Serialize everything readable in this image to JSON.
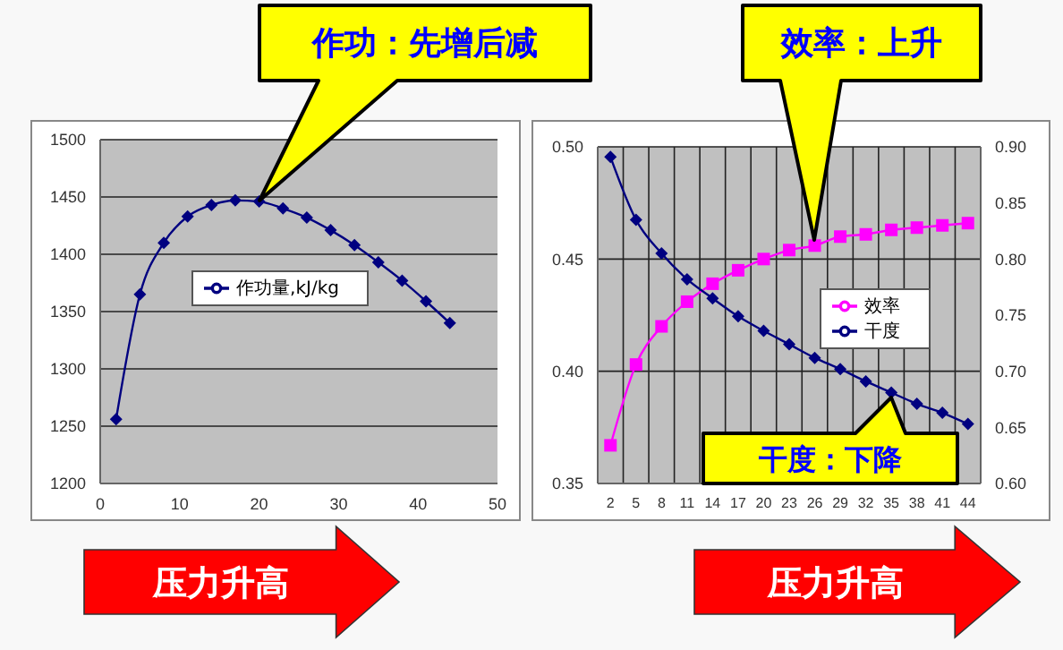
{
  "chart_data": [
    {
      "type": "line",
      "x": [
        2,
        5,
        8,
        11,
        14,
        17,
        20,
        23,
        26,
        29,
        32,
        35,
        38,
        41,
        44
      ],
      "series": [
        {
          "name": "作功量,kJ/kg",
          "color": "#000080",
          "marker": "diamond",
          "values": [
            1256,
            1365,
            1410,
            1433,
            1443,
            1447,
            1446,
            1440,
            1432,
            1421,
            1408,
            1393,
            1377,
            1359,
            1340
          ]
        }
      ],
      "xlim": [
        0,
        50
      ],
      "xticks": [
        0,
        10,
        20,
        30,
        40,
        50
      ],
      "ylim": [
        1200,
        1500
      ],
      "yticks": [
        1200,
        1250,
        1300,
        1350,
        1400,
        1450,
        1500
      ],
      "grid": "y",
      "legend": "center",
      "annotations": [
        "作功：先增后减",
        "压力升高"
      ]
    },
    {
      "type": "line",
      "categories": [
        "2",
        "5",
        "8",
        "11",
        "14",
        "17",
        "20",
        "23",
        "26",
        "29",
        "32",
        "35",
        "38",
        "41",
        "44"
      ],
      "series": [
        {
          "name": "效率",
          "color": "#ff00ff",
          "marker": "square",
          "values": [
            0.367,
            0.403,
            0.42,
            0.431,
            0.439,
            0.445,
            0.45,
            0.454,
            0.456,
            0.46,
            0.461,
            0.463,
            0.464,
            0.465,
            0.466
          ]
        },
        {
          "name": "干度",
          "color": "#000080",
          "marker": "diamond",
          "axis": "y2",
          "values": [
            0.891,
            0.835,
            0.805,
            0.782,
            0.765,
            0.749,
            0.736,
            0.724,
            0.712,
            0.702,
            0.691,
            0.681,
            0.671,
            0.663,
            0.653
          ]
        }
      ],
      "ylim": [
        0.35,
        0.5
      ],
      "yticks": [
        {
          "value": 0.35,
          "label": "0.35"
        },
        {
          "value": 0.4,
          "label": "0.40"
        },
        {
          "value": 0.45,
          "label": "0.45"
        },
        {
          "value": 0.5,
          "label": "0.50"
        }
      ],
      "y2lim": [
        0.6,
        0.9
      ],
      "y2ticks": [
        {
          "value": 0.6,
          "label": "0.60"
        },
        {
          "value": 0.65,
          "label": "0.65"
        },
        {
          "value": 0.7,
          "label": "0.70"
        },
        {
          "value": 0.75,
          "label": "0.75"
        },
        {
          "value": 0.8,
          "label": "0.80"
        },
        {
          "value": 0.85,
          "label": "0.85"
        },
        {
          "value": 0.9,
          "label": "0.90"
        }
      ],
      "grid": true,
      "legend": "right",
      "annotations": [
        "效率：上升",
        "干度：下降",
        "压力升高"
      ]
    }
  ]
}
